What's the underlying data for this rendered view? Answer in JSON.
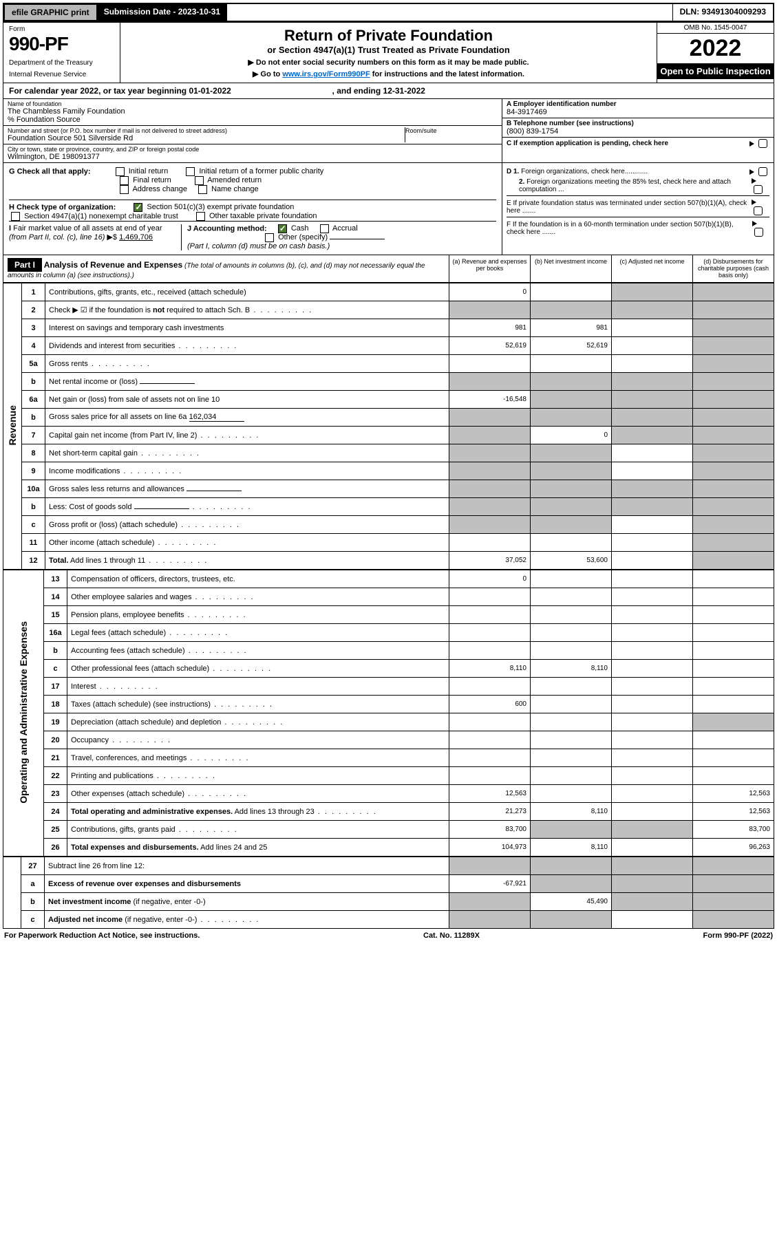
{
  "colors": {
    "topbar_btn_bg": "#b8b8b8",
    "black": "#000000",
    "white": "#ffffff",
    "link": "#0066cc",
    "check_green": "#4a7a2a",
    "shade": "#c0c0c0"
  },
  "topbar": {
    "efile_btn": "efile GRAPHIC print",
    "submission": "Submission Date - 2023-10-31",
    "dln": "DLN: 93491304009293"
  },
  "header": {
    "form_label": "Form",
    "form_number": "990-PF",
    "dept1": "Department of the Treasury",
    "dept2": "Internal Revenue Service",
    "title": "Return of Private Foundation",
    "subtitle": "or Section 4947(a)(1) Trust Treated as Private Foundation",
    "note1": "▶ Do not enter social security numbers on this form as it may be made public.",
    "note2_pre": "▶ Go to ",
    "note2_link": "www.irs.gov/Form990PF",
    "note2_post": " for instructions and the latest information.",
    "omb": "OMB No. 1545-0047",
    "year": "2022",
    "open": "Open to Public Inspection"
  },
  "calyear": {
    "pre": "For calendar year 2022, or tax year beginning ",
    "begin": "01-01-2022",
    "mid": ", and ending ",
    "end": "12-31-2022"
  },
  "info": {
    "name_lbl": "Name of foundation",
    "name_val": "The Chambless Family Foundation",
    "source_lbl": "% Foundation Source",
    "addr_lbl": "Number and street (or P.O. box number if mail is not delivered to street address)",
    "addr_val": "Foundation Source 501 Silverside Rd",
    "room_lbl": "Room/suite",
    "city_lbl": "City or town, state or province, country, and ZIP or foreign postal code",
    "city_val": "Wilmington, DE  198091377",
    "a_lbl": "A Employer identification number",
    "a_val": "84-3917469",
    "b_lbl": "B Telephone number (see instructions)",
    "b_val": "(800) 839-1754",
    "c_lbl": "C If exemption application is pending, check here"
  },
  "checks": {
    "g_lbl": "G Check all that apply:",
    "g_opts": [
      "Initial return",
      "Initial return of a former public charity",
      "Final return",
      "Amended return",
      "Address change",
      "Name change"
    ],
    "h_lbl": "H Check type of organization:",
    "h_opt1": "Section 501(c)(3) exempt private foundation",
    "h_opt2": "Section 4947(a)(1) nonexempt charitable trust",
    "h_opt3": "Other taxable private foundation",
    "i_lbl": "I Fair market value of all assets at end of year (from Part II, col. (c), line 16) ▶$ ",
    "i_val": "1,469,706",
    "j_lbl": "J Accounting method:",
    "j_cash": "Cash",
    "j_accr": "Accrual",
    "j_other": "Other (specify)",
    "j_note": "(Part I, column (d) must be on cash basis.)",
    "d1": "D 1. Foreign organizations, check here............",
    "d2": "2. Foreign organizations meeting the 85% test, check here and attach computation ...",
    "e": "E  If private foundation status was terminated under section 507(b)(1)(A), check here .......",
    "f": "F  If the foundation is in a 60-month termination under section 507(b)(1)(B), check here .......  "
  },
  "part1": {
    "badge": "Part I",
    "title": "Analysis of Revenue and Expenses",
    "title_note": " (The total of amounts in columns (b), (c), and (d) may not necessarily equal the amounts in column (a) (see instructions).)",
    "col_a": "(a)  Revenue and expenses per books",
    "col_b": "(b)  Net investment income",
    "col_c": "(c)  Adjusted net income",
    "col_d": "(d)  Disbursements for charitable purposes (cash basis only)"
  },
  "vlabels": {
    "revenue": "Revenue",
    "expenses": "Operating and Administrative Expenses"
  },
  "rows": [
    {
      "n": "1",
      "desc": "Contributions, gifts, grants, etc., received (attach schedule)",
      "a": "0",
      "b": "",
      "c": "s",
      "d": "s"
    },
    {
      "n": "2",
      "desc": "Check ▶ ☑ if the foundation is <b>not</b> required to attach Sch. B",
      "a": "s",
      "b": "s",
      "c": "s",
      "d": "s",
      "dots": true
    },
    {
      "n": "3",
      "desc": "Interest on savings and temporary cash investments",
      "a": "981",
      "b": "981",
      "c": "",
      "d": "s"
    },
    {
      "n": "4",
      "desc": "Dividends and interest from securities",
      "a": "52,619",
      "b": "52,619",
      "c": "",
      "d": "s",
      "dots": true
    },
    {
      "n": "5a",
      "desc": "Gross rents",
      "a": "",
      "b": "",
      "c": "",
      "d": "s",
      "dots": true
    },
    {
      "n": "b",
      "desc": "Net rental income or (loss)",
      "a": "s",
      "b": "s",
      "c": "s",
      "d": "s",
      "inline": true
    },
    {
      "n": "6a",
      "desc": "Net gain or (loss) from sale of assets not on line 10",
      "a": "-16,548",
      "b": "s",
      "c": "s",
      "d": "s"
    },
    {
      "n": "b",
      "desc": "Gross sales price for all assets on line 6a",
      "a": "s",
      "b": "s",
      "c": "s",
      "d": "s",
      "inline": true,
      "inlineval": "162,034"
    },
    {
      "n": "7",
      "desc": "Capital gain net income (from Part IV, line 2)",
      "a": "s",
      "b": "0",
      "c": "s",
      "d": "s",
      "dots": true
    },
    {
      "n": "8",
      "desc": "Net short-term capital gain",
      "a": "s",
      "b": "s",
      "c": "",
      "d": "s",
      "dots": true
    },
    {
      "n": "9",
      "desc": "Income modifications",
      "a": "s",
      "b": "s",
      "c": "",
      "d": "s",
      "dots": true
    },
    {
      "n": "10a",
      "desc": "Gross sales less returns and allowances",
      "a": "s",
      "b": "s",
      "c": "s",
      "d": "s",
      "inline": true
    },
    {
      "n": "b",
      "desc": "Less: Cost of goods sold",
      "a": "s",
      "b": "s",
      "c": "s",
      "d": "s",
      "inline": true,
      "dots": true
    },
    {
      "n": "c",
      "desc": "Gross profit or (loss) (attach schedule)",
      "a": "s",
      "b": "s",
      "c": "",
      "d": "s",
      "dots": true
    },
    {
      "n": "11",
      "desc": "Other income (attach schedule)",
      "a": "",
      "b": "",
      "c": "",
      "d": "s",
      "dots": true
    },
    {
      "n": "12",
      "desc": "<b>Total.</b> Add lines 1 through 11",
      "a": "37,052",
      "b": "53,600",
      "c": "",
      "d": "s",
      "dots": true
    }
  ],
  "rows2": [
    {
      "n": "13",
      "desc": "Compensation of officers, directors, trustees, etc.",
      "a": "0",
      "b": "",
      "c": "",
      "d": ""
    },
    {
      "n": "14",
      "desc": "Other employee salaries and wages",
      "a": "",
      "b": "",
      "c": "",
      "d": "",
      "dots": true
    },
    {
      "n": "15",
      "desc": "Pension plans, employee benefits",
      "a": "",
      "b": "",
      "c": "",
      "d": "",
      "dots": true
    },
    {
      "n": "16a",
      "desc": "Legal fees (attach schedule)",
      "a": "",
      "b": "",
      "c": "",
      "d": "",
      "dots": true
    },
    {
      "n": "b",
      "desc": "Accounting fees (attach schedule)",
      "a": "",
      "b": "",
      "c": "",
      "d": "",
      "dots": true
    },
    {
      "n": "c",
      "desc": "Other professional fees (attach schedule)",
      "a": "8,110",
      "b": "8,110",
      "c": "",
      "d": "",
      "dots": true
    },
    {
      "n": "17",
      "desc": "Interest",
      "a": "",
      "b": "",
      "c": "",
      "d": "",
      "dots": true
    },
    {
      "n": "18",
      "desc": "Taxes (attach schedule) (see instructions)",
      "a": "600",
      "b": "",
      "c": "",
      "d": "",
      "dots": true
    },
    {
      "n": "19",
      "desc": "Depreciation (attach schedule) and depletion",
      "a": "",
      "b": "",
      "c": "",
      "d": "s",
      "dots": true
    },
    {
      "n": "20",
      "desc": "Occupancy",
      "a": "",
      "b": "",
      "c": "",
      "d": "",
      "dots": true
    },
    {
      "n": "21",
      "desc": "Travel, conferences, and meetings",
      "a": "",
      "b": "",
      "c": "",
      "d": "",
      "dots": true
    },
    {
      "n": "22",
      "desc": "Printing and publications",
      "a": "",
      "b": "",
      "c": "",
      "d": "",
      "dots": true
    },
    {
      "n": "23",
      "desc": "Other expenses (attach schedule)",
      "a": "12,563",
      "b": "",
      "c": "",
      "d": "12,563",
      "dots": true
    },
    {
      "n": "24",
      "desc": "<b>Total operating and administrative expenses.</b> Add lines 13 through 23",
      "a": "21,273",
      "b": "8,110",
      "c": "",
      "d": "12,563",
      "dots": true
    },
    {
      "n": "25",
      "desc": "Contributions, gifts, grants paid",
      "a": "83,700",
      "b": "s",
      "c": "s",
      "d": "83,700",
      "dots": true
    },
    {
      "n": "26",
      "desc": "<b>Total expenses and disbursements.</b> Add lines 24 and 25",
      "a": "104,973",
      "b": "8,110",
      "c": "",
      "d": "96,263"
    }
  ],
  "rows3": [
    {
      "n": "27",
      "desc": "Subtract line 26 from line 12:",
      "a": "s",
      "b": "s",
      "c": "s",
      "d": "s"
    },
    {
      "n": "a",
      "desc": "<b>Excess of revenue over expenses and disbursements</b>",
      "a": "-67,921",
      "b": "s",
      "c": "s",
      "d": "s"
    },
    {
      "n": "b",
      "desc": "<b>Net investment income</b> (if negative, enter -0-)",
      "a": "s",
      "b": "45,490",
      "c": "s",
      "d": "s"
    },
    {
      "n": "c",
      "desc": "<b>Adjusted net income</b> (if negative, enter -0-)",
      "a": "s",
      "b": "s",
      "c": "",
      "d": "s",
      "dots": true
    }
  ],
  "footer": {
    "left": "For Paperwork Reduction Act Notice, see instructions.",
    "mid": "Cat. No. 11289X",
    "right": "Form 990-PF (2022)"
  }
}
